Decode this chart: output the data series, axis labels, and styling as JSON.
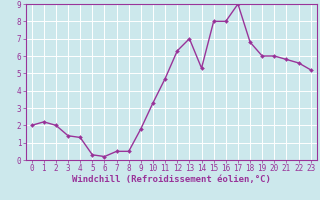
{
  "x": [
    0,
    1,
    2,
    3,
    4,
    5,
    6,
    7,
    8,
    9,
    10,
    11,
    12,
    13,
    14,
    15,
    16,
    17,
    18,
    19,
    20,
    21,
    22,
    23
  ],
  "y": [
    2.0,
    2.2,
    2.0,
    1.4,
    1.3,
    0.3,
    0.2,
    0.5,
    0.5,
    1.8,
    3.3,
    4.7,
    6.3,
    7.0,
    5.3,
    8.0,
    8.0,
    9.0,
    6.8,
    6.0,
    6.0,
    5.8,
    5.6,
    5.2
  ],
  "xlabel": "Windchill (Refroidissement éolien,°C)",
  "ylim": [
    0,
    9
  ],
  "xlim": [
    -0.5,
    23.5
  ],
  "yticks": [
    0,
    1,
    2,
    3,
    4,
    5,
    6,
    7,
    8,
    9
  ],
  "xticks": [
    0,
    1,
    2,
    3,
    4,
    5,
    6,
    7,
    8,
    9,
    10,
    11,
    12,
    13,
    14,
    15,
    16,
    17,
    18,
    19,
    20,
    21,
    22,
    23
  ],
  "line_color": "#993399",
  "marker": "D",
  "marker_size": 2.0,
  "line_width": 1.0,
  "bg_color": "#cce8ec",
  "grid_color": "#ffffff",
  "tick_label_fontsize": 5.5,
  "xlabel_fontsize": 6.5,
  "spine_color": "#993399"
}
